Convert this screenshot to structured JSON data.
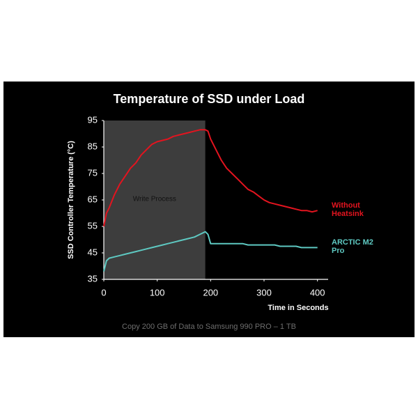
{
  "chart_data": {
    "type": "line",
    "title": "Temperature of SSD under Load",
    "x_label": "Time in Seconds",
    "y_label": "SSD Controller Temperature (°C)",
    "caption": "Copy 200 GB of Data to Samsung 990 PRO  – 1 TB",
    "highlight": {
      "label": "Write Process",
      "x": [
        0,
        190
      ]
    },
    "x": [
      0,
      5,
      10,
      20,
      30,
      40,
      50,
      60,
      70,
      80,
      90,
      100,
      110,
      120,
      130,
      140,
      150,
      160,
      170,
      180,
      190,
      195,
      200,
      210,
      220,
      230,
      240,
      250,
      260,
      270,
      280,
      290,
      300,
      310,
      320,
      330,
      340,
      350,
      360,
      370,
      380,
      390,
      400
    ],
    "series": [
      {
        "name": "Without Heatsink",
        "color": "#e3141f",
        "values": [
          55,
          60,
          62,
          67,
          71,
          74,
          77,
          79,
          82,
          84,
          86,
          87,
          87.5,
          88,
          89,
          89.5,
          90,
          90.5,
          91,
          91.5,
          91.5,
          91,
          88,
          84,
          80,
          77,
          75,
          73,
          71,
          69,
          68,
          66.5,
          65,
          64,
          63.5,
          63,
          62.5,
          62,
          61.5,
          61,
          61,
          60.5,
          61
        ]
      },
      {
        "name": "ARCTIC M2 Pro",
        "color": "#5ec9c2",
        "values": [
          38,
          42,
          43,
          43.5,
          44,
          44.5,
          45,
          45.5,
          46,
          46.5,
          47,
          47.5,
          48,
          48.5,
          49,
          49.5,
          50,
          50.5,
          51,
          52,
          53,
          52,
          48.5,
          48.5,
          48.5,
          48.5,
          48.5,
          48.5,
          48.5,
          48,
          48,
          48,
          48,
          48,
          48,
          47.5,
          47.5,
          47.5,
          47.5,
          47,
          47,
          47,
          47
        ]
      }
    ],
    "xlim": [
      0,
      420
    ],
    "xticks": [
      0,
      100,
      200,
      300,
      400
    ],
    "ylim": [
      35,
      95
    ],
    "yticks": [
      35,
      45,
      55,
      65,
      75,
      85,
      95
    ],
    "grid": false
  }
}
